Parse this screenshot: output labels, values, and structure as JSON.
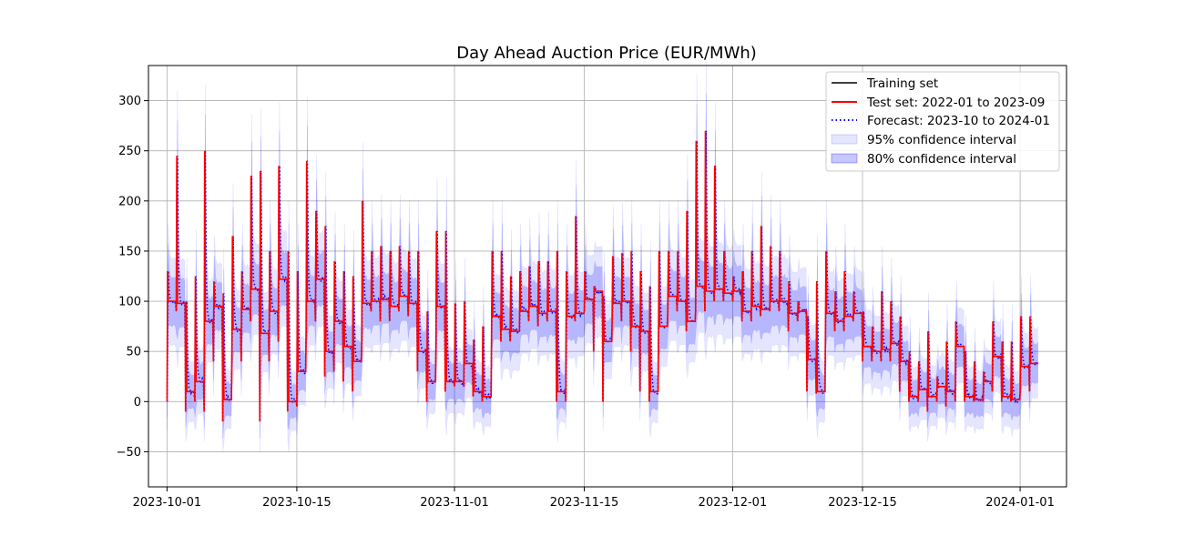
{
  "chart_data": {
    "type": "line",
    "title": "Day Ahead Auction Price (EUR/MWh)",
    "xlabel": "",
    "ylabel": "",
    "xlim": [
      "2023-09-29",
      "2024-01-06"
    ],
    "ylim": [
      -85,
      335
    ],
    "grid": true,
    "legend_position": "top-right",
    "x_ticks": [
      "2023-10-01",
      "2023-10-15",
      "2023-11-01",
      "2023-11-15",
      "2023-12-01",
      "2023-12-15",
      "2024-01-01"
    ],
    "y_ticks": [
      -50,
      0,
      50,
      100,
      150,
      200,
      250,
      300
    ],
    "x_tick_labels": [
      "2023-10-01",
      "2023-10-15",
      "2023-11-01",
      "2023-11-15",
      "2023-12-01",
      "2023-12-15",
      "2024-01-01"
    ],
    "y_tick_labels": [
      "−50",
      "0",
      "50",
      "100",
      "150",
      "200",
      "250",
      "300"
    ],
    "series": [
      {
        "name": "Training set",
        "style": "solid",
        "color": "#000000",
        "values": []
      },
      {
        "name": "Test set: 2022-01 to 2023-09",
        "style": "solid",
        "color": "#ff0000",
        "dates": [
          "2023-10-01",
          "2023-10-02",
          "2023-10-03",
          "2023-10-04",
          "2023-10-05",
          "2023-10-06",
          "2023-10-07",
          "2023-10-08",
          "2023-10-09",
          "2023-10-10",
          "2023-10-11",
          "2023-10-12",
          "2023-10-13",
          "2023-10-14",
          "2023-10-15",
          "2023-10-16",
          "2023-10-17",
          "2023-10-18",
          "2023-10-19",
          "2023-10-20",
          "2023-10-21",
          "2023-10-22",
          "2023-10-23",
          "2023-10-24",
          "2023-10-25",
          "2023-10-26",
          "2023-10-27",
          "2023-10-28",
          "2023-10-29",
          "2023-10-30",
          "2023-10-31",
          "2023-11-01",
          "2023-11-02",
          "2023-11-03",
          "2023-11-04",
          "2023-11-05",
          "2023-11-06",
          "2023-11-07",
          "2023-11-08",
          "2023-11-09",
          "2023-11-10",
          "2023-11-11",
          "2023-11-12",
          "2023-11-13",
          "2023-11-14",
          "2023-11-15",
          "2023-11-16",
          "2023-11-17",
          "2023-11-18",
          "2023-11-19",
          "2023-11-20",
          "2023-11-21",
          "2023-11-22",
          "2023-11-23",
          "2023-11-24",
          "2023-11-25",
          "2023-11-26",
          "2023-11-27",
          "2023-11-28",
          "2023-11-29",
          "2023-11-30",
          "2023-12-01",
          "2023-12-02",
          "2023-12-03",
          "2023-12-04",
          "2023-12-05",
          "2023-12-06",
          "2023-12-07",
          "2023-12-08",
          "2023-12-09",
          "2023-12-10",
          "2023-12-11",
          "2023-12-12",
          "2023-12-13",
          "2023-12-14",
          "2023-12-15",
          "2023-12-16",
          "2023-12-17",
          "2023-12-18",
          "2023-12-19",
          "2023-12-20",
          "2023-12-21",
          "2023-12-22",
          "2023-12-23",
          "2023-12-24",
          "2023-12-25",
          "2023-12-26",
          "2023-12-27",
          "2023-12-28",
          "2023-12-29",
          "2023-12-30",
          "2023-12-31",
          "2024-01-01",
          "2024-01-02"
        ],
        "values": [
          100,
          98,
          10,
          20,
          80,
          95,
          2,
          72,
          92,
          112,
          68,
          90,
          122,
          0,
          30,
          100,
          122,
          50,
          80,
          55,
          40,
          98,
          100,
          102,
          95,
          105,
          98,
          50,
          20,
          95,
          20,
          20,
          38,
          10,
          5,
          85,
          72,
          70,
          90,
          95,
          88,
          90,
          10,
          85,
          88,
          102,
          110,
          60,
          98,
          100,
          75,
          70,
          10,
          75,
          105,
          100,
          80,
          115,
          110,
          112,
          108,
          110,
          90,
          95,
          92,
          100,
          100,
          88,
          90,
          42,
          10,
          88,
          80,
          85,
          88,
          55,
          50,
          52,
          58,
          40,
          5,
          12,
          5,
          15,
          10,
          55,
          5,
          2,
          20,
          45,
          5,
          2,
          35,
          38
        ],
        "hi": [
          130,
          245,
          100,
          125,
          250,
          120,
          108,
          165,
          130,
          225,
          230,
          150,
          235,
          150,
          130,
          240,
          190,
          175,
          140,
          130,
          125,
          200,
          150,
          155,
          150,
          155,
          150,
          150,
          90,
          170,
          170,
          98,
          100,
          62,
          75,
          150,
          150,
          125,
          130,
          135,
          140,
          140,
          150,
          130,
          185,
          130,
          115,
          105,
          145,
          148,
          150,
          130,
          115,
          150,
          150,
          150,
          190,
          260,
          270,
          235,
          150,
          125,
          130,
          150,
          175,
          155,
          150,
          120,
          100,
          85,
          120,
          150,
          110,
          130,
          110,
          90,
          75,
          110,
          100,
          85,
          50,
          40,
          70,
          25,
          60,
          80,
          50,
          40,
          30,
          80,
          60,
          60,
          85,
          85
        ],
        "lo": [
          0,
          90,
          -10,
          0,
          -10,
          40,
          -20,
          50,
          40,
          80,
          -20,
          40,
          60,
          -10,
          -5,
          70,
          80,
          25,
          30,
          20,
          10,
          60,
          90,
          80,
          80,
          90,
          85,
          30,
          0,
          50,
          10,
          15,
          15,
          5,
          0,
          70,
          60,
          60,
          70,
          80,
          75,
          80,
          0,
          0,
          80,
          90,
          50,
          0,
          80,
          80,
          50,
          10,
          0,
          70,
          90,
          90,
          70,
          90,
          90,
          100,
          100,
          100,
          80,
          80,
          85,
          90,
          90,
          70,
          80,
          10,
          8,
          70,
          70,
          70,
          80,
          40,
          40,
          40,
          40,
          10,
          0,
          0,
          -10,
          0,
          -5,
          0,
          0,
          0,
          0,
          10,
          0,
          0,
          10,
          10
        ]
      },
      {
        "name": "Forecast: 2023-10 to 2024-01",
        "style": "dotted",
        "color": "#0000ff"
      }
    ],
    "bands": [
      {
        "name": "95% confidence interval",
        "color": "#0000ff",
        "opacity": 0.1
      },
      {
        "name": "80% confidence interval",
        "color": "#0000ff",
        "opacity": 0.2
      }
    ]
  }
}
